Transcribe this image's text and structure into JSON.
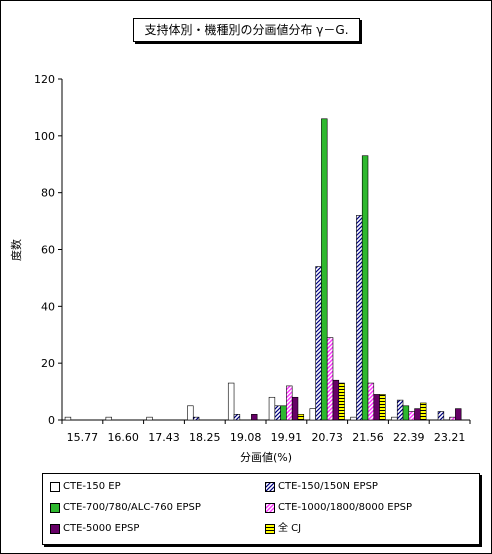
{
  "chart_data": {
    "type": "bar",
    "title": "支持体別・機種別の分画値分布 γ－G.",
    "xlabel": "分画値(%)",
    "ylabel": "度数",
    "ylim": [
      0,
      120
    ],
    "yticks": [
      0,
      20,
      40,
      60,
      80,
      100,
      120
    ],
    "categories": [
      "15.77",
      "16.60",
      "17.43",
      "18.25",
      "19.08",
      "19.91",
      "20.73",
      "21.56",
      "22.39",
      "23.21"
    ],
    "grid": false,
    "legend_position": "bottom",
    "series": [
      {
        "name": "CTE-150 EP",
        "color": "#ffffff",
        "pattern": "plain",
        "values": [
          1,
          1,
          1,
          5,
          13,
          8,
          4,
          1,
          1,
          0
        ]
      },
      {
        "name": "CTE-150/150N EPSP",
        "color": "#ffffff",
        "pattern": "hatch-navy",
        "values": [
          0,
          0,
          0,
          1,
          2,
          5,
          54,
          72,
          7,
          3
        ]
      },
      {
        "name": "CTE-700/780/ALC-760 EPSP",
        "color": "#2eb82e",
        "pattern": "plain",
        "values": [
          0,
          0,
          0,
          0,
          0,
          5,
          106,
          93,
          5,
          0
        ]
      },
      {
        "name": "CTE-1000/1800/8000 EPSP",
        "color": "#ff55ff",
        "pattern": "hatch-magenta",
        "values": [
          0,
          0,
          0,
          0,
          0,
          12,
          29,
          13,
          3,
          1
        ]
      },
      {
        "name": "CTE-5000 EPSP",
        "color": "#660066",
        "pattern": "plain",
        "values": [
          0,
          0,
          0,
          0,
          2,
          8,
          14,
          9,
          4,
          4
        ]
      },
      {
        "name": "全 CJ",
        "color": "#ffff00",
        "pattern": "stripe-yellow",
        "values": [
          0,
          0,
          0,
          0,
          0,
          2,
          13,
          9,
          6,
          0
        ]
      }
    ]
  }
}
